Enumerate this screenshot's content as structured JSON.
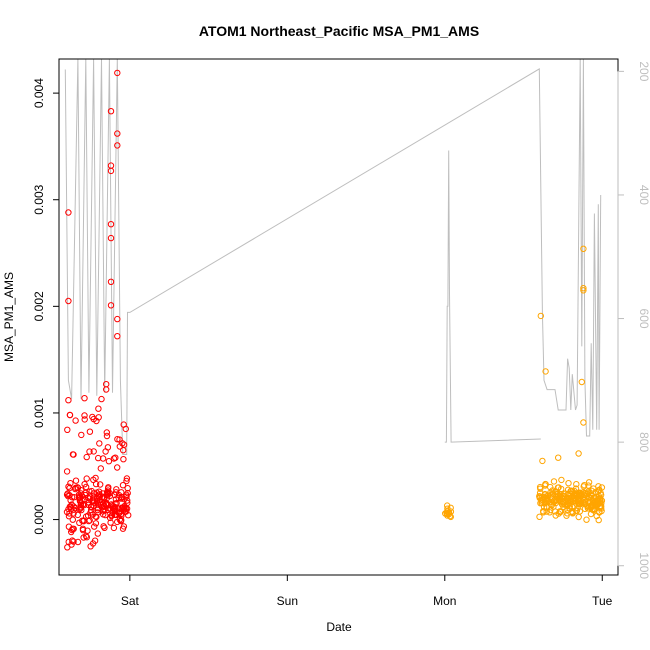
{
  "chart_data": {
    "type": "scatter",
    "title": "ATOM1 Northeast_Pacific MSA_PM1_AMS",
    "xlabel": "Date",
    "ylabel": "MSA_PM1_AMS",
    "x_ticks": [
      "Sat",
      "Sun",
      "Mon",
      "Tue"
    ],
    "y_ticks": [
      "0.000",
      "0.001",
      "0.002",
      "0.003",
      "0.004"
    ],
    "y_right_ticks": [
      "200",
      "400",
      "600",
      "800",
      "1000"
    ],
    "ylim": [
      -0.00052,
      0.00432
    ],
    "y_right_lim": [
      1015,
      180
    ],
    "xlim_days_from_sat": [
      -0.45,
      3.1
    ],
    "colors": {
      "group1": "#ff0000",
      "group2": "#ffa500",
      "altitude_line": "#bebebe",
      "axes": "#000000"
    },
    "series": [
      {
        "color": "group1",
        "x_range": [
          -0.4,
          -0.01
        ],
        "clusters": [
          {
            "x_range": [
              -0.4,
              -0.01
            ],
            "y_mean": 0.00015,
            "y_spread": 0.00017,
            "count": 200
          },
          {
            "x_range": [
              -0.4,
              -0.01
            ],
            "y_mean": 0.00075,
            "y_spread": 0.0003,
            "count": 40
          },
          {
            "x_range": [
              -0.4,
              -0.2
            ],
            "y_mean": -0.00015,
            "y_spread": 0.00012,
            "count": 20
          }
        ],
        "points": [
          [
            -0.39,
            0.00288
          ],
          [
            -0.39,
            0.00205
          ],
          [
            -0.39,
            0.00112
          ],
          [
            -0.38,
            0.00098
          ],
          [
            -0.12,
            0.00383
          ],
          [
            -0.12,
            0.00332
          ],
          [
            -0.12,
            0.00327
          ],
          [
            -0.12,
            0.00277
          ],
          [
            -0.12,
            0.00264
          ],
          [
            -0.12,
            0.00223
          ],
          [
            -0.12,
            0.00201
          ],
          [
            -0.08,
            0.00419
          ],
          [
            -0.08,
            0.00362
          ],
          [
            -0.08,
            0.00351
          ],
          [
            -0.08,
            0.00188
          ],
          [
            -0.08,
            0.00172
          ],
          [
            -0.18,
            0.00113
          ],
          [
            -0.15,
            0.00127
          ],
          [
            -0.15,
            0.00122
          ],
          [
            -0.2,
            0.00104
          ]
        ]
      },
      {
        "color": "group2",
        "clusters": [
          {
            "x_range": [
              2.0,
              2.04
            ],
            "y_mean": 7e-05,
            "y_spread": 6e-05,
            "count": 14
          },
          {
            "x_range": [
              2.6,
              3.0
            ],
            "y_mean": 0.00018,
            "y_spread": 0.00012,
            "count": 260
          }
        ],
        "points": [
          [
            2.61,
            0.00191
          ],
          [
            2.64,
            0.00139
          ],
          [
            2.88,
            0.00254
          ],
          [
            2.88,
            0.00217
          ],
          [
            2.88,
            0.00215
          ],
          [
            2.87,
            0.00129
          ],
          [
            2.88,
            0.00091
          ],
          [
            2.62,
            0.00055
          ],
          [
            2.85,
            0.00062
          ],
          [
            2.72,
            0.00058
          ]
        ]
      }
    ],
    "altitude_line": [
      [
        -0.41,
        197
      ],
      [
        -0.39,
        700
      ],
      [
        -0.37,
        730
      ],
      [
        -0.33,
        180
      ],
      [
        -0.31,
        730
      ],
      [
        -0.28,
        180
      ],
      [
        -0.26,
        720
      ],
      [
        -0.23,
        180
      ],
      [
        -0.21,
        725
      ],
      [
        -0.18,
        180
      ],
      [
        -0.16,
        720
      ],
      [
        -0.13,
        180
      ],
      [
        -0.11,
        720
      ],
      [
        -0.08,
        180
      ],
      [
        -0.06,
        700
      ],
      [
        -0.045,
        820
      ],
      [
        -0.02,
        820
      ],
      [
        -0.015,
        590
      ],
      [
        0.0,
        590
      ],
      [
        2.6,
        196
      ],
      [
        2.62,
        590
      ],
      [
        2.63,
        700
      ],
      [
        2.65,
        715
      ],
      [
        2.7,
        715
      ],
      [
        2.72,
        748
      ],
      [
        2.77,
        748
      ],
      [
        2.78,
        665
      ],
      [
        2.79,
        680
      ],
      [
        2.8,
        748
      ],
      [
        2.81,
        690
      ],
      [
        2.83,
        748
      ],
      [
        2.84,
        740
      ],
      [
        2.86,
        180
      ],
      [
        2.87,
        645
      ],
      [
        2.88,
        180
      ],
      [
        2.89,
        700
      ],
      [
        2.9,
        790
      ],
      [
        2.92,
        790
      ],
      [
        2.93,
        640
      ],
      [
        2.94,
        780
      ],
      [
        2.95,
        430
      ],
      [
        2.965,
        780
      ],
      [
        2.975,
        415
      ],
      [
        2.98,
        780
      ],
      [
        2.99,
        400
      ]
    ],
    "altitude_line_segment2": [
      [
        2.0,
        800
      ],
      [
        2.01,
        800
      ],
      [
        2.015,
        580
      ],
      [
        2.02,
        580
      ],
      [
        2.025,
        328
      ],
      [
        2.03,
        560
      ],
      [
        2.04,
        800
      ],
      [
        2.61,
        795
      ]
    ]
  }
}
